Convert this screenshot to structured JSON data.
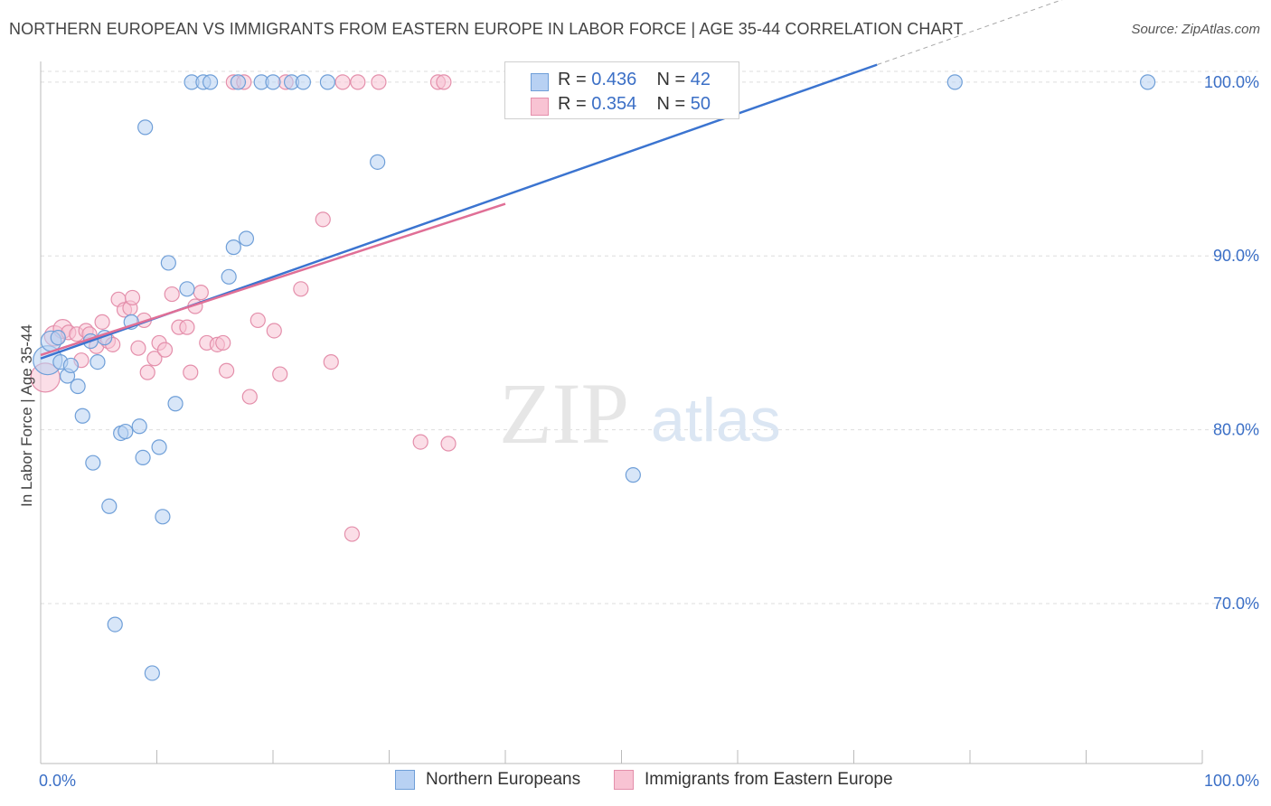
{
  "header": {
    "title": "NORTHERN EUROPEAN VS IMMIGRANTS FROM EASTERN EUROPE IN LABOR FORCE | AGE 35-44 CORRELATION CHART",
    "source": "Source: ZipAtlas.com"
  },
  "watermark": {
    "zip": "ZIP",
    "atlas": "atlas"
  },
  "legend_top": {
    "rows": [
      {
        "r_label": "R =",
        "r_value": "0.436",
        "n_label": "N =",
        "n_value": "42"
      },
      {
        "r_label": "R =",
        "r_value": "0.354",
        "n_label": "N =",
        "n_value": "50"
      }
    ]
  },
  "legend_bottom": {
    "series1": "Northern Europeans",
    "series2": "Immigrants from Eastern Europe"
  },
  "colors": {
    "blue_fill": "#b8d1f3",
    "blue_stroke": "#6f9fd8",
    "blue_line": "#3b74d0",
    "pink_fill": "#f8c3d3",
    "pink_stroke": "#e48fab",
    "pink_line": "#e06f96",
    "tick_text": "#3b6fc6",
    "grid": "#dddddd"
  },
  "chart_data": {
    "type": "scatter",
    "title": "NORTHERN EUROPEAN VS IMMIGRANTS FROM EASTERN EUROPE IN LABOR FORCE | AGE 35-44 CORRELATION CHART",
    "xlabel": "",
    "ylabel": "In Labor Force | Age 35-44",
    "xlim": [
      0,
      100
    ],
    "ylim": [
      60.8,
      101.5
    ],
    "x_tick_labels": [
      "0.0%",
      "100.0%"
    ],
    "y_ticks": [
      70,
      80,
      90,
      100
    ],
    "y_tick_labels": [
      "70.0%",
      "80.0%",
      "90.0%",
      "100.0%"
    ],
    "series": [
      {
        "name": "Northern Europeans",
        "R": 0.436,
        "N": 42,
        "trend": {
          "x": [
            0,
            72.0
          ],
          "y": [
            84.1,
            101.0
          ]
        },
        "points": [
          {
            "x": 0.6,
            "y": 84.0,
            "s": 2
          },
          {
            "x": 0.9,
            "y": 85.1,
            "s": 1.4
          },
          {
            "x": 1.5,
            "y": 85.3,
            "s": 1
          },
          {
            "x": 1.7,
            "y": 83.9,
            "s": 1
          },
          {
            "x": 2.3,
            "y": 83.1,
            "s": 1
          },
          {
            "x": 2.6,
            "y": 83.7,
            "s": 1
          },
          {
            "x": 3.2,
            "y": 82.5,
            "s": 1
          },
          {
            "x": 3.6,
            "y": 80.8,
            "s": 1
          },
          {
            "x": 4.3,
            "y": 85.1,
            "s": 1
          },
          {
            "x": 4.5,
            "y": 78.1,
            "s": 1
          },
          {
            "x": 4.9,
            "y": 83.9,
            "s": 1
          },
          {
            "x": 5.5,
            "y": 85.3,
            "s": 1
          },
          {
            "x": 5.9,
            "y": 75.6,
            "s": 1
          },
          {
            "x": 6.4,
            "y": 68.8,
            "s": 1
          },
          {
            "x": 6.9,
            "y": 79.8,
            "s": 1
          },
          {
            "x": 7.3,
            "y": 79.9,
            "s": 1
          },
          {
            "x": 7.8,
            "y": 86.2,
            "s": 1
          },
          {
            "x": 8.5,
            "y": 80.2,
            "s": 1
          },
          {
            "x": 8.8,
            "y": 78.4,
            "s": 1
          },
          {
            "x": 9.0,
            "y": 97.4,
            "s": 1
          },
          {
            "x": 9.6,
            "y": 66.0,
            "s": 1
          },
          {
            "x": 10.2,
            "y": 79.0,
            "s": 1
          },
          {
            "x": 10.5,
            "y": 75.0,
            "s": 1
          },
          {
            "x": 11.0,
            "y": 89.6,
            "s": 1
          },
          {
            "x": 11.6,
            "y": 81.5,
            "s": 1
          },
          {
            "x": 12.6,
            "y": 88.1,
            "s": 1
          },
          {
            "x": 13.0,
            "y": 100.0,
            "s": 1
          },
          {
            "x": 14.0,
            "y": 100.0,
            "s": 1
          },
          {
            "x": 14.6,
            "y": 100.0,
            "s": 1
          },
          {
            "x": 16.2,
            "y": 88.8,
            "s": 1
          },
          {
            "x": 16.6,
            "y": 90.5,
            "s": 1
          },
          {
            "x": 17.0,
            "y": 100.0,
            "s": 1
          },
          {
            "x": 17.7,
            "y": 91.0,
            "s": 1
          },
          {
            "x": 19.0,
            "y": 100.0,
            "s": 1
          },
          {
            "x": 21.6,
            "y": 100.0,
            "s": 1
          },
          {
            "x": 22.6,
            "y": 100.0,
            "s": 1
          },
          {
            "x": 24.7,
            "y": 100.0,
            "s": 1
          },
          {
            "x": 29.0,
            "y": 95.4,
            "s": 1
          },
          {
            "x": 51.0,
            "y": 77.4,
            "s": 1
          },
          {
            "x": 78.7,
            "y": 100.0,
            "s": 1
          },
          {
            "x": 95.3,
            "y": 100.0,
            "s": 1
          },
          {
            "x": 20.0,
            "y": 100.0,
            "s": 1
          }
        ]
      },
      {
        "name": "Immigrants from Eastern Europe",
        "R": 0.354,
        "N": 50,
        "trend": {
          "x": [
            0,
            40.0
          ],
          "y": [
            84.3,
            93.0
          ]
        },
        "points": [
          {
            "x": 0.4,
            "y": 83.0,
            "s": 2
          },
          {
            "x": 1.2,
            "y": 85.4,
            "s": 1.4
          },
          {
            "x": 1.9,
            "y": 85.8,
            "s": 1.3
          },
          {
            "x": 2.4,
            "y": 85.6,
            "s": 1
          },
          {
            "x": 3.1,
            "y": 85.5,
            "s": 1
          },
          {
            "x": 3.5,
            "y": 84.0,
            "s": 1
          },
          {
            "x": 3.9,
            "y": 85.7,
            "s": 1
          },
          {
            "x": 4.2,
            "y": 85.5,
            "s": 1
          },
          {
            "x": 4.8,
            "y": 84.8,
            "s": 1
          },
          {
            "x": 5.3,
            "y": 86.2,
            "s": 1
          },
          {
            "x": 5.8,
            "y": 85.1,
            "s": 1
          },
          {
            "x": 6.2,
            "y": 84.9,
            "s": 1
          },
          {
            "x": 6.7,
            "y": 87.5,
            "s": 1
          },
          {
            "x": 7.2,
            "y": 86.9,
            "s": 1
          },
          {
            "x": 7.7,
            "y": 87.0,
            "s": 1
          },
          {
            "x": 7.9,
            "y": 87.6,
            "s": 1
          },
          {
            "x": 8.4,
            "y": 84.7,
            "s": 1
          },
          {
            "x": 8.9,
            "y": 86.3,
            "s": 1
          },
          {
            "x": 9.2,
            "y": 83.3,
            "s": 1
          },
          {
            "x": 9.8,
            "y": 84.1,
            "s": 1
          },
          {
            "x": 10.2,
            "y": 85.0,
            "s": 1
          },
          {
            "x": 10.7,
            "y": 84.6,
            "s": 1
          },
          {
            "x": 11.3,
            "y": 87.8,
            "s": 1
          },
          {
            "x": 11.9,
            "y": 85.9,
            "s": 1
          },
          {
            "x": 12.6,
            "y": 85.9,
            "s": 1
          },
          {
            "x": 12.9,
            "y": 83.3,
            "s": 1
          },
          {
            "x": 13.3,
            "y": 87.1,
            "s": 1
          },
          {
            "x": 13.8,
            "y": 87.9,
            "s": 1
          },
          {
            "x": 14.3,
            "y": 85.0,
            "s": 1
          },
          {
            "x": 15.2,
            "y": 84.9,
            "s": 1
          },
          {
            "x": 15.7,
            "y": 85.0,
            "s": 1
          },
          {
            "x": 16.0,
            "y": 83.4,
            "s": 1
          },
          {
            "x": 16.6,
            "y": 100.0,
            "s": 1
          },
          {
            "x": 17.5,
            "y": 100.0,
            "s": 1
          },
          {
            "x": 18.0,
            "y": 81.9,
            "s": 1
          },
          {
            "x": 18.7,
            "y": 86.3,
            "s": 1
          },
          {
            "x": 20.1,
            "y": 85.7,
            "s": 1
          },
          {
            "x": 20.6,
            "y": 83.2,
            "s": 1
          },
          {
            "x": 21.1,
            "y": 100.0,
            "s": 1
          },
          {
            "x": 22.4,
            "y": 88.1,
            "s": 1
          },
          {
            "x": 24.3,
            "y": 92.1,
            "s": 1
          },
          {
            "x": 25.0,
            "y": 83.9,
            "s": 1
          },
          {
            "x": 26.0,
            "y": 100.0,
            "s": 1
          },
          {
            "x": 26.8,
            "y": 74.0,
            "s": 1
          },
          {
            "x": 27.3,
            "y": 100.0,
            "s": 1
          },
          {
            "x": 29.1,
            "y": 100.0,
            "s": 1
          },
          {
            "x": 32.7,
            "y": 79.3,
            "s": 1
          },
          {
            "x": 34.2,
            "y": 100.0,
            "s": 1
          },
          {
            "x": 34.7,
            "y": 100.0,
            "s": 1
          },
          {
            "x": 35.1,
            "y": 79.2,
            "s": 1
          }
        ]
      }
    ],
    "grid": true,
    "legend": "top-center"
  }
}
